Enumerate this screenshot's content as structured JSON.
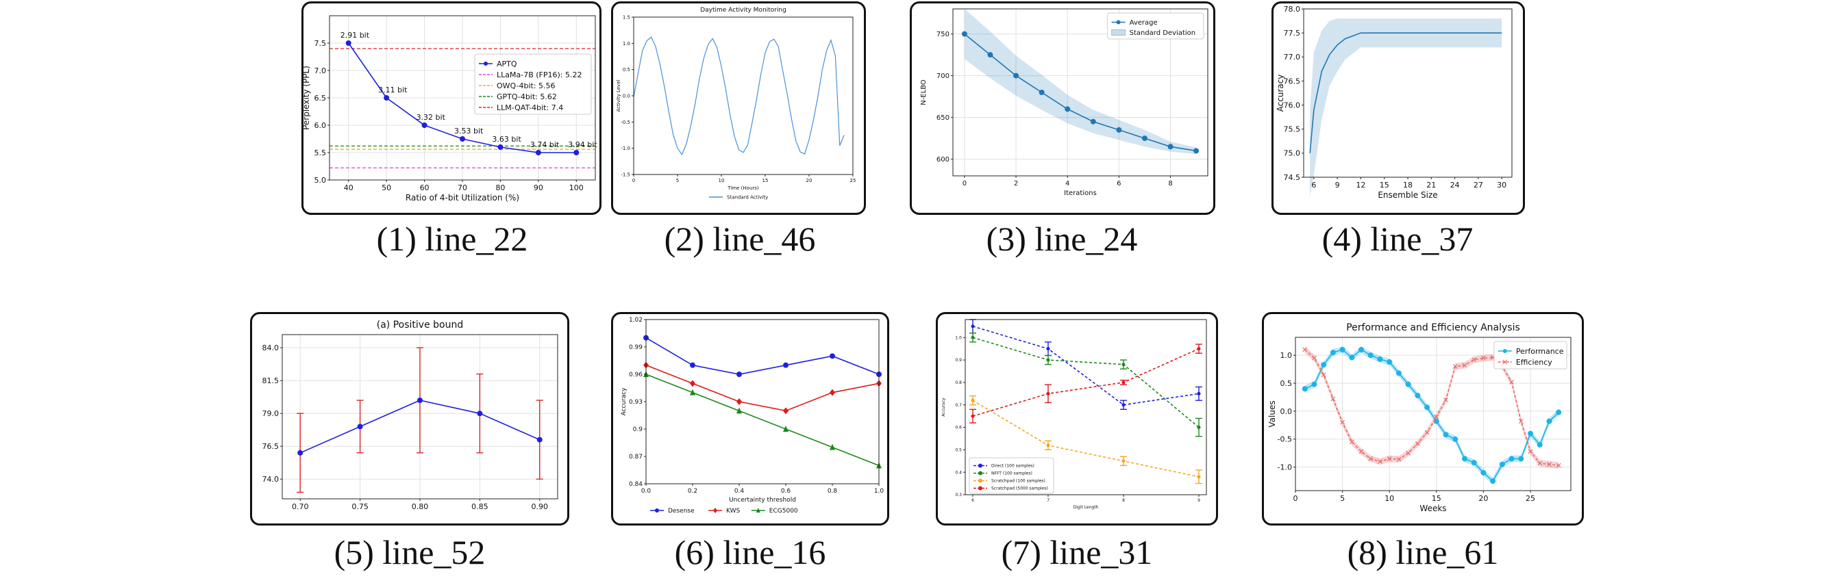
{
  "panels": [
    {
      "caption": "(1) line_22",
      "title": "",
      "xlabel": "Ratio of 4-bit Utilization (%)",
      "ylabel": "Perplexity (PPL)",
      "xlim": [
        35,
        105
      ],
      "ylim": [
        5.0,
        8.0
      ],
      "xticks": [
        40,
        50,
        60,
        70,
        80,
        90,
        100
      ],
      "yticks": [
        5.0,
        5.5,
        6.0,
        6.5,
        7.0,
        7.5
      ],
      "ytick_labels": [
        "5.0",
        "5.5",
        "6.0",
        "6.5",
        "7.0",
        "7.5"
      ],
      "grid": true,
      "legend_pos": "center-right",
      "series": [
        {
          "name": "APTQ",
          "type": "line",
          "color": "#1f1fe0",
          "marker": "circle",
          "x": [
            40,
            50,
            60,
            70,
            80,
            90,
            100
          ],
          "y": [
            7.5,
            6.5,
            6.0,
            5.75,
            5.6,
            5.5,
            5.5
          ]
        }
      ],
      "hlines": [
        {
          "name": "LLaMa-7B (FP16): 5.22",
          "y": 5.22,
          "color": "#e040e0"
        },
        {
          "name": "OWQ-4bit: 5.56",
          "y": 5.56,
          "color": "#f5a623"
        },
        {
          "name": "GPTQ-4bit: 5.62",
          "y": 5.62,
          "color": "#1a8a1a"
        },
        {
          "name": "LLM-QAT-4bit: 7.4",
          "y": 7.4,
          "color": "#d62728"
        }
      ],
      "annotations": [
        {
          "text": "2.91 bit",
          "x": 40,
          "y": 7.5
        },
        {
          "text": "3.11 bit",
          "x": 50,
          "y": 6.5
        },
        {
          "text": "3.32 bit",
          "x": 60,
          "y": 6.0
        },
        {
          "text": "3.53 bit",
          "x": 70,
          "y": 5.75
        },
        {
          "text": "3.63 bit",
          "x": 80,
          "y": 5.6
        },
        {
          "text": "3.74 bit",
          "x": 90,
          "y": 5.5
        },
        {
          "text": "3.94 bit",
          "x": 100,
          "y": 5.5
        }
      ]
    },
    {
      "caption": "(2) line_46",
      "title": "Daytime Activity Monitoring",
      "xlabel": "Time (Hours)",
      "ylabel": "Activity Level",
      "xlim": [
        0,
        25
      ],
      "ylim": [
        -1.5,
        1.5
      ],
      "xticks": [
        0,
        5,
        10,
        15,
        20,
        25
      ],
      "yticks": [
        -1.5,
        -1.0,
        -0.5,
        0.0,
        0.5,
        1.0,
        1.5
      ],
      "ytick_labels": [
        "-1.5",
        "-1.0",
        "-0.5",
        "0.0",
        "0.5",
        "1.0",
        "1.5"
      ],
      "grid": false,
      "legend_pos": "below",
      "series": [
        {
          "name": "Standard Activity",
          "type": "line",
          "color": "#4a90d9",
          "marker": "none",
          "x": [
            0,
            0.5,
            1,
            1.5,
            2,
            2.5,
            3,
            3.5,
            4,
            4.5,
            5,
            5.5,
            6,
            6.5,
            7,
            7.5,
            8,
            8.5,
            9,
            9.5,
            10,
            10.5,
            11,
            11.5,
            12,
            12.5,
            13,
            13.5,
            14,
            14.5,
            15,
            15.5,
            16,
            16.5,
            17,
            17.5,
            18,
            18.5,
            19,
            19.5,
            20,
            20.5,
            21,
            21.5,
            22,
            22.5,
            23,
            23.5,
            24
          ],
          "y": [
            -0.02,
            0.42,
            0.86,
            1.05,
            1.12,
            0.94,
            0.6,
            0.18,
            -0.3,
            -0.74,
            -1.0,
            -1.12,
            -0.92,
            -0.58,
            -0.16,
            0.33,
            0.72,
            0.98,
            1.09,
            0.92,
            0.56,
            0.12,
            -0.37,
            -0.78,
            -1.03,
            -1.08,
            -0.94,
            -0.52,
            -0.08,
            0.41,
            0.82,
            1.03,
            1.08,
            0.94,
            0.48,
            0.04,
            -0.44,
            -0.86,
            -1.07,
            -1.11,
            -0.84,
            -0.46,
            -0.02,
            0.49,
            0.86,
            1.06,
            0.76,
            -0.95,
            -0.75
          ]
        }
      ]
    },
    {
      "caption": "(3) line_24",
      "title": "",
      "xlabel": "Iterations",
      "ylabel": "N-ELBO",
      "xlim": [
        -0.45,
        9.45
      ],
      "ylim": [
        580,
        780
      ],
      "xticks": [
        0,
        2,
        4,
        6,
        8
      ],
      "yticks": [
        600,
        650,
        700,
        750
      ],
      "ytick_labels": [
        "600",
        "650",
        "700",
        "750"
      ],
      "grid": true,
      "legend_pos": "top-right",
      "series": [
        {
          "name": "Average",
          "type": "line",
          "color": "#1f77b4",
          "marker": "circle",
          "x": [
            0,
            1,
            2,
            3,
            4,
            5,
            6,
            7,
            8,
            9
          ],
          "y": [
            750,
            725,
            700,
            680,
            660,
            645,
            635,
            625,
            615,
            610
          ]
        }
      ],
      "bands": [
        {
          "name": "Standard Deviation",
          "color": "#1f77b4",
          "x": [
            0,
            1,
            2,
            3,
            4,
            5,
            6,
            7,
            8,
            9
          ],
          "lower": [
            720,
            697,
            676,
            659,
            643,
            631,
            623,
            615,
            609,
            606
          ],
          "upper": [
            780,
            753,
            724,
            701,
            677,
            659,
            647,
            635,
            621,
            614
          ]
        }
      ]
    },
    {
      "caption": "(4) line_37",
      "title": "",
      "xlabel": "Ensemble Size",
      "ylabel": "Accuracy",
      "xlim": [
        4.7,
        31.3
      ],
      "ylim": [
        74.5,
        78.0
      ],
      "xticks": [
        6,
        9,
        12,
        15,
        18,
        21,
        24,
        27,
        30
      ],
      "yticks": [
        74.5,
        75.0,
        75.5,
        76.0,
        76.5,
        77.0,
        77.5,
        78.0
      ],
      "ytick_labels": [
        "74.5",
        "75.0",
        "75.5",
        "76.0",
        "76.5",
        "77.0",
        "77.5",
        "78.0"
      ],
      "grid": false,
      "legend_pos": "none",
      "series": [
        {
          "name": "",
          "type": "line",
          "color": "#1f77b4",
          "marker": "none",
          "x": [
            5.5,
            6,
            7,
            8,
            9,
            10,
            12,
            30
          ],
          "y": [
            75.0,
            75.9,
            76.7,
            77.05,
            77.25,
            77.38,
            77.5,
            77.5
          ]
        }
      ],
      "bands": [
        {
          "name": "",
          "color": "#1f77b4",
          "x": [
            5.5,
            6,
            7,
            8,
            9,
            10,
            12,
            30
          ],
          "lower": [
            74.1,
            74.55,
            75.7,
            76.4,
            76.7,
            76.95,
            77.2,
            77.2
          ],
          "upper": [
            75.9,
            77.1,
            77.55,
            77.75,
            77.8,
            77.8,
            77.8,
            77.8
          ]
        }
      ]
    },
    {
      "caption": "(5) line_52",
      "title": "(a) Positive bound",
      "xlabel": "",
      "ylabel": "",
      "xlim": [
        0.685,
        0.915
      ],
      "ylim": [
        72.5,
        85.0
      ],
      "xticks": [
        0.7,
        0.75,
        0.8,
        0.85,
        0.9
      ],
      "xtick_labels": [
        "0.70",
        "0.75",
        "0.80",
        "0.85",
        "0.90"
      ],
      "yticks": [
        74.0,
        76.5,
        79.0,
        81.5,
        84.0
      ],
      "ytick_labels": [
        "74.0",
        "76.5",
        "79.0",
        "81.5",
        "84.0"
      ],
      "grid": true,
      "legend_pos": "none",
      "series": [
        {
          "name": "",
          "type": "line",
          "color": "#1f1fe0",
          "marker": "circle",
          "x": [
            0.7,
            0.75,
            0.8,
            0.85,
            0.9
          ],
          "y": [
            76.0,
            78.0,
            80.0,
            79.0,
            77.0
          ],
          "err": [
            3.0,
            2.0,
            4.0,
            3.0,
            3.0
          ],
          "err_color": "#d62728"
        }
      ]
    },
    {
      "caption": "(6) line_16",
      "title": "",
      "xlabel": "Uncertainty threshold",
      "ylabel": "Accuracy",
      "xlim": [
        0,
        1.0
      ],
      "ylim": [
        0.84,
        1.02
      ],
      "xticks": [
        0,
        0.2,
        0.4,
        0.6,
        0.8,
        1.0
      ],
      "xtick_labels": [
        "0.0",
        "0.2",
        "0.4",
        "0.6",
        "0.8",
        "1.0"
      ],
      "yticks": [
        0.84,
        0.87,
        0.9,
        0.93,
        0.96,
        0.99,
        1.02
      ],
      "ytick_labels": [
        "0.84",
        "0.87",
        "0.9",
        "0.93",
        "0.96",
        "0.99",
        "1.02"
      ],
      "grid": false,
      "legend_pos": "below",
      "series": [
        {
          "name": "Desense",
          "type": "line",
          "color": "#1f1fe0",
          "marker": "circle",
          "x": [
            0,
            0.2,
            0.4,
            0.6,
            0.8,
            1.0
          ],
          "y": [
            1.0,
            0.97,
            0.96,
            0.97,
            0.98,
            0.96
          ]
        },
        {
          "name": "KWS",
          "type": "line",
          "color": "#e01818",
          "marker": "diamond",
          "x": [
            0,
            0.2,
            0.4,
            0.6,
            0.8,
            1.0
          ],
          "y": [
            0.97,
            0.95,
            0.93,
            0.92,
            0.94,
            0.95
          ]
        },
        {
          "name": "ECG5000",
          "type": "line",
          "color": "#1a8a1a",
          "marker": "triangle",
          "x": [
            0,
            0.2,
            0.4,
            0.6,
            0.8,
            1.0
          ],
          "y": [
            0.96,
            0.94,
            0.92,
            0.9,
            0.88,
            0.86
          ]
        }
      ]
    },
    {
      "caption": "(7) line_31",
      "title": "",
      "xlabel": "Digit Length",
      "ylabel": "Accuracy",
      "xlim": [
        5.9,
        9.1
      ],
      "ylim": [
        0.3,
        1.08
      ],
      "xticks": [
        6,
        7,
        8,
        9
      ],
      "yticks": [
        0.3,
        0.4,
        0.5,
        0.6,
        0.7,
        0.8,
        0.9,
        1.0
      ],
      "ytick_labels": [
        "0.3",
        "0.4",
        "0.5",
        "0.6",
        "0.7",
        "0.8",
        "0.9",
        "1.0"
      ],
      "grid": false,
      "legend_pos": "bottom-left",
      "series": [
        {
          "name": "Direct (100 samples)",
          "type": "line",
          "dashed": true,
          "color": "#1f1fe0",
          "marker": "circle",
          "x": [
            6,
            7,
            8,
            9
          ],
          "y": [
            1.05,
            0.95,
            0.7,
            0.75
          ],
          "err": [
            0.03,
            0.03,
            0.02,
            0.03
          ],
          "err_color": "#1f1fe0"
        },
        {
          "name": "NFFT (100 samples)",
          "type": "line",
          "dashed": true,
          "color": "#1a8a1a",
          "marker": "circle",
          "x": [
            6,
            7,
            8,
            9
          ],
          "y": [
            1.0,
            0.9,
            0.88,
            0.6
          ],
          "err": [
            0.02,
            0.02,
            0.02,
            0.04
          ],
          "err_color": "#1a8a1a"
        },
        {
          "name": "Scratchpad (100 samples)",
          "type": "line",
          "dashed": true,
          "color": "#f5a623",
          "marker": "circle",
          "x": [
            6,
            7,
            8,
            9
          ],
          "y": [
            0.72,
            0.52,
            0.45,
            0.38
          ],
          "err": [
            0.02,
            0.02,
            0.02,
            0.03
          ],
          "err_color": "#f5a623"
        },
        {
          "name": "Scratchpad (5000 samples)",
          "type": "line",
          "dashed": true,
          "color": "#e01818",
          "marker": "circle",
          "x": [
            6,
            7,
            8,
            9
          ],
          "y": [
            0.65,
            0.75,
            0.8,
            0.95
          ],
          "err": [
            0.03,
            0.04,
            0.01,
            0.02
          ],
          "err_color": "#e01818"
        }
      ]
    },
    {
      "caption": "(8) line_61",
      "title": "Performance and Efficiency Analysis",
      "xlabel": "Weeks",
      "ylabel": "Values",
      "xlim": [
        0,
        29.3
      ],
      "ylim": [
        -1.42,
        1.32
      ],
      "xticks": [
        0,
        5,
        10,
        15,
        20,
        25
      ],
      "yticks": [
        -1.0,
        -0.5,
        0.0,
        0.5,
        1.0
      ],
      "ytick_labels": [
        "-1.0",
        "-0.5",
        "0.0",
        "0.5",
        "1.0"
      ],
      "grid": true,
      "legend_pos": "top-right",
      "series": [
        {
          "name": "Performance",
          "type": "line",
          "color": "#1eb3e8",
          "marker": "circle",
          "band": 0.06,
          "x": [
            1,
            2,
            3,
            4,
            5,
            6,
            7,
            8,
            9,
            10,
            11,
            12,
            13,
            14,
            15,
            16,
            17,
            18,
            19,
            20,
            21,
            22,
            23,
            24,
            25,
            26,
            27,
            28
          ],
          "y": [
            0.4,
            0.48,
            0.83,
            1.05,
            1.1,
            0.96,
            1.1,
            1.0,
            0.93,
            0.88,
            0.68,
            0.48,
            0.28,
            0.07,
            -0.18,
            -0.42,
            -0.5,
            -0.85,
            -0.92,
            -1.1,
            -1.25,
            -0.95,
            -0.85,
            -0.85,
            -0.4,
            -0.6,
            -0.18,
            -0.02
          ]
        },
        {
          "name": "Efficiency",
          "type": "line",
          "dashed": true,
          "color": "#e86a6a",
          "marker": "x",
          "band": 0.06,
          "x": [
            1,
            2,
            3,
            4,
            5,
            6,
            7,
            8,
            9,
            10,
            11,
            12,
            13,
            14,
            15,
            16,
            17,
            18,
            19,
            20,
            21,
            22,
            23,
            24,
            25,
            26,
            27,
            28
          ],
          "y": [
            1.1,
            0.95,
            0.65,
            0.22,
            -0.2,
            -0.55,
            -0.72,
            -0.85,
            -0.9,
            -0.85,
            -0.86,
            -0.75,
            -0.58,
            -0.38,
            -0.1,
            0.2,
            0.8,
            0.82,
            0.92,
            0.95,
            0.96,
            0.8,
            0.52,
            -0.18,
            -0.72,
            -0.93,
            -0.95,
            -0.97
          ]
        }
      ]
    }
  ]
}
